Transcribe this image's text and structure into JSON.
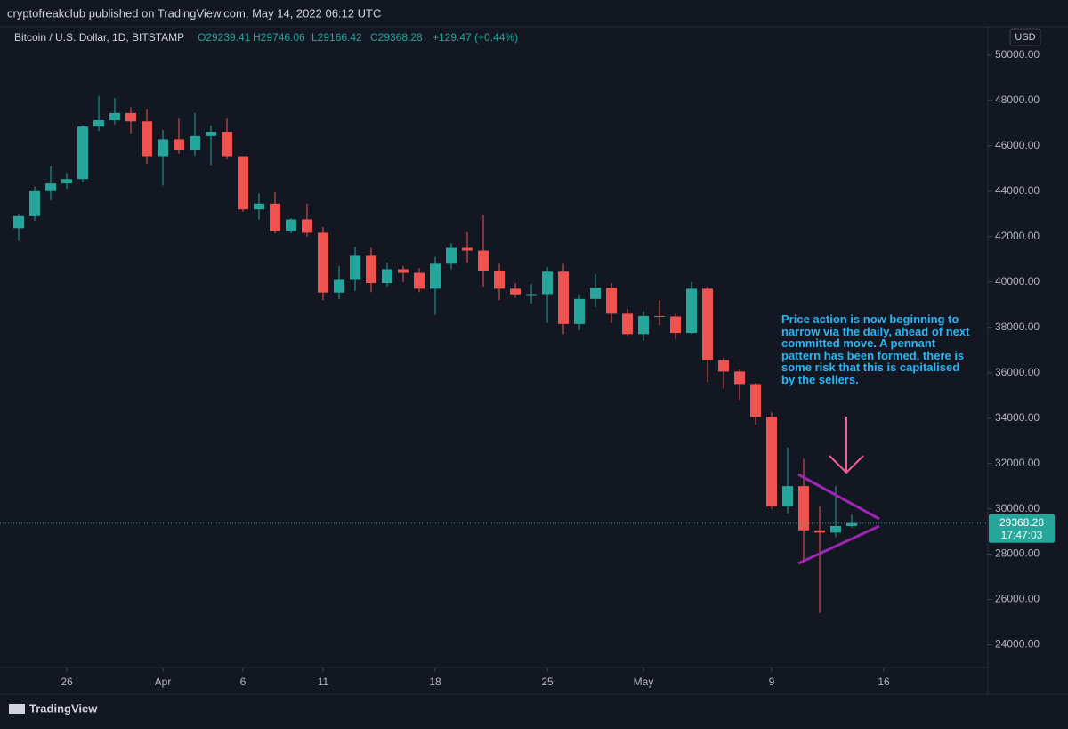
{
  "header": "cryptofreakclub published on TradingView.com, May 14, 2022 06:12 UTC",
  "footer": "TradingView",
  "chart_data": {
    "type": "candlestick",
    "title": "Bitcoin / U.S. Dollar, 1D, BITSTAMP",
    "ohlc_labels": [
      "O29239.41",
      "H29746.06",
      "L29166.42",
      "C29368.28",
      "+129.47 (+0.44%)"
    ],
    "currency": "USD",
    "countdown": "17:47:03",
    "up_color": "#26a69a",
    "down_color": "#ef5350",
    "annotation": "Price action is now beginning to narrow via the daily, ahead of next committed move. A pennant pattern has been formed, there is some risk that this is capitalised by the sellers.",
    "ylim": [
      23000,
      51250
    ],
    "yticks": [
      {
        "value": 24000,
        "label": "24000.00"
      },
      {
        "value": 26000,
        "label": "26000.00"
      },
      {
        "value": 28000,
        "label": "28000.00"
      },
      {
        "value": 30000,
        "label": "30000.00"
      },
      {
        "value": 32000,
        "label": "32000.00"
      },
      {
        "value": 34000,
        "label": "34000.00"
      },
      {
        "value": 36000,
        "label": "36000.00"
      },
      {
        "value": 38000,
        "label": "38000.00"
      },
      {
        "value": 40000,
        "label": "40000.00"
      },
      {
        "value": 42000,
        "label": "42000.00"
      },
      {
        "value": 44000,
        "label": "44000.00"
      },
      {
        "value": 46000,
        "label": "46000.00"
      },
      {
        "value": 48000,
        "label": "48000.00"
      },
      {
        "value": 50000,
        "label": "50000.00"
      }
    ],
    "xticks": [
      {
        "value": "Mar 26",
        "label": "26"
      },
      {
        "value": "Apr 1",
        "label": "Apr"
      },
      {
        "value": "Apr 6",
        "label": "6"
      },
      {
        "value": "Apr 11",
        "label": "11"
      },
      {
        "value": "Apr 18",
        "label": "18"
      },
      {
        "value": "Apr 25",
        "label": "25"
      },
      {
        "value": "May 1",
        "label": "May"
      },
      {
        "value": "May 9",
        "label": "9"
      },
      {
        "value": "May 16",
        "label": "16"
      }
    ],
    "candles": [
      {
        "x": "Mar 23",
        "open": 42370,
        "high": 43000,
        "low": 41820,
        "close": 42900
      },
      {
        "x": "Mar 24",
        "open": 42900,
        "high": 44200,
        "low": 42700,
        "close": 44000
      },
      {
        "x": "Mar 25",
        "open": 44000,
        "high": 45100,
        "low": 43600,
        "close": 44340
      },
      {
        "x": "Mar 26",
        "open": 44340,
        "high": 44800,
        "low": 44100,
        "close": 44530
      },
      {
        "x": "Mar 27",
        "open": 44530,
        "high": 46900,
        "low": 44400,
        "close": 46850
      },
      {
        "x": "Mar 28",
        "open": 46850,
        "high": 48200,
        "low": 46650,
        "close": 47130
      },
      {
        "x": "Mar 29",
        "open": 47130,
        "high": 48100,
        "low": 46950,
        "close": 47450
      },
      {
        "x": "Mar 30",
        "open": 47450,
        "high": 47700,
        "low": 46550,
        "close": 47080
      },
      {
        "x": "Mar 31",
        "open": 47080,
        "high": 47600,
        "low": 45200,
        "close": 45540
      },
      {
        "x": "Apr 1",
        "open": 45540,
        "high": 46700,
        "low": 44250,
        "close": 46290
      },
      {
        "x": "Apr 2",
        "open": 46290,
        "high": 47200,
        "low": 45650,
        "close": 45830
      },
      {
        "x": "Apr 3",
        "open": 45830,
        "high": 47450,
        "low": 45550,
        "close": 46430
      },
      {
        "x": "Apr 4",
        "open": 46430,
        "high": 46900,
        "low": 45150,
        "close": 46620
      },
      {
        "x": "Apr 5",
        "open": 46620,
        "high": 47200,
        "low": 45400,
        "close": 45540
      },
      {
        "x": "Apr 6",
        "open": 45540,
        "high": 45540,
        "low": 43100,
        "close": 43200
      },
      {
        "x": "Apr 7",
        "open": 43200,
        "high": 43900,
        "low": 42750,
        "close": 43450
      },
      {
        "x": "Apr 8",
        "open": 43450,
        "high": 43950,
        "low": 42150,
        "close": 42250
      },
      {
        "x": "Apr 9",
        "open": 42250,
        "high": 42800,
        "low": 42150,
        "close": 42760
      },
      {
        "x": "Apr 10",
        "open": 42760,
        "high": 43450,
        "low": 42000,
        "close": 42170
      },
      {
        "x": "Apr 11",
        "open": 42170,
        "high": 42420,
        "low": 39200,
        "close": 39530
      },
      {
        "x": "Apr 12",
        "open": 39530,
        "high": 40700,
        "low": 39250,
        "close": 40090
      },
      {
        "x": "Apr 13",
        "open": 40090,
        "high": 41550,
        "low": 39600,
        "close": 41150
      },
      {
        "x": "Apr 14",
        "open": 41150,
        "high": 41500,
        "low": 39550,
        "close": 39950
      },
      {
        "x": "Apr 15",
        "open": 39950,
        "high": 40850,
        "low": 39800,
        "close": 40560
      },
      {
        "x": "Apr 16",
        "open": 40560,
        "high": 40700,
        "low": 40000,
        "close": 40400
      },
      {
        "x": "Apr 17",
        "open": 40400,
        "high": 40600,
        "low": 39550,
        "close": 39700
      },
      {
        "x": "Apr 18",
        "open": 39700,
        "high": 41100,
        "low": 38550,
        "close": 40800
      },
      {
        "x": "Apr 19",
        "open": 40800,
        "high": 41700,
        "low": 40550,
        "close": 41500
      },
      {
        "x": "Apr 20",
        "open": 41500,
        "high": 42200,
        "low": 40850,
        "close": 41380
      },
      {
        "x": "Apr 21",
        "open": 41380,
        "high": 42950,
        "low": 39800,
        "close": 40500
      },
      {
        "x": "Apr 22",
        "open": 40500,
        "high": 40800,
        "low": 39200,
        "close": 39700
      },
      {
        "x": "Apr 23",
        "open": 39700,
        "high": 39950,
        "low": 39300,
        "close": 39450
      },
      {
        "x": "Apr 24",
        "open": 39450,
        "high": 39900,
        "low": 39050,
        "close": 39460
      },
      {
        "x": "Apr 25",
        "open": 39460,
        "high": 40650,
        "low": 38200,
        "close": 40450
      },
      {
        "x": "Apr 26",
        "open": 40450,
        "high": 40800,
        "low": 37700,
        "close": 38150
      },
      {
        "x": "Apr 27",
        "open": 38150,
        "high": 39450,
        "low": 37880,
        "close": 39250
      },
      {
        "x": "Apr 28",
        "open": 39250,
        "high": 40350,
        "low": 38900,
        "close": 39750
      },
      {
        "x": "Apr 29",
        "open": 39750,
        "high": 39950,
        "low": 38200,
        "close": 38600
      },
      {
        "x": "Apr 30",
        "open": 38600,
        "high": 38800,
        "low": 37600,
        "close": 37700
      },
      {
        "x": "May 1",
        "open": 37700,
        "high": 38700,
        "low": 37400,
        "close": 38500
      },
      {
        "x": "May 2",
        "open": 38500,
        "high": 39200,
        "low": 38100,
        "close": 38480
      },
      {
        "x": "May 3",
        "open": 38480,
        "high": 38600,
        "low": 37500,
        "close": 37750
      },
      {
        "x": "May 4",
        "open": 37750,
        "high": 40000,
        "low": 37700,
        "close": 39700
      },
      {
        "x": "May 5",
        "open": 39700,
        "high": 39800,
        "low": 35600,
        "close": 36550
      },
      {
        "x": "May 6",
        "open": 36550,
        "high": 36650,
        "low": 35300,
        "close": 36050
      },
      {
        "x": "May 7",
        "open": 36050,
        "high": 36150,
        "low": 34800,
        "close": 35500
      },
      {
        "x": "May 8",
        "open": 35500,
        "high": 35550,
        "low": 33700,
        "close": 34050
      },
      {
        "x": "May 9",
        "open": 34050,
        "high": 34250,
        "low": 30000,
        "close": 30100
      },
      {
        "x": "May 10",
        "open": 30100,
        "high": 32700,
        "low": 29800,
        "close": 31000
      },
      {
        "x": "May 11",
        "open": 31000,
        "high": 32200,
        "low": 27700,
        "close": 29050
      },
      {
        "x": "May 12",
        "open": 29050,
        "high": 30100,
        "low": 25400,
        "close": 28950
      },
      {
        "x": "May 13",
        "open": 28950,
        "high": 31000,
        "low": 28750,
        "close": 29239.41
      },
      {
        "x": "May 14",
        "open": 29239.41,
        "high": 29746.06,
        "low": 29166.42,
        "close": 29368.28
      }
    ]
  }
}
